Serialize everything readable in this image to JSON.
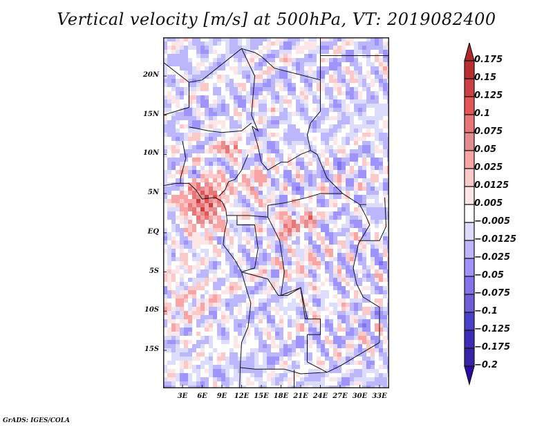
{
  "title": "Vertical velocity [m/s] at 500hPa, VT: 2019082400",
  "credit": "GrADS: IGES/COLA",
  "chart_data": {
    "type": "heatmap",
    "title": "Vertical velocity [m/s] at 500hPa, VT: 2019082400",
    "variable": "Vertical velocity",
    "units": "m/s",
    "level": "500hPa",
    "valid_time": "2019082400",
    "xlabel": "",
    "ylabel": "",
    "lon_range": [
      0,
      35
    ],
    "lat_range": [
      -20,
      25
    ],
    "x_ticks": [
      "3E",
      "6E",
      "9E",
      "12E",
      "15E",
      "18E",
      "21E",
      "24E",
      "27E",
      "30E",
      "33E"
    ],
    "x_tick_values": [
      3,
      6,
      9,
      12,
      15,
      18,
      21,
      24,
      27,
      30,
      33
    ],
    "y_ticks": [
      "20N",
      "15N",
      "10N",
      "5N",
      "EQ",
      "5S",
      "10S",
      "15S"
    ],
    "y_tick_values": [
      20,
      15,
      10,
      5,
      0,
      -5,
      -10,
      -15
    ],
    "colorbar": {
      "placement": "right",
      "levels": [
        0.175,
        0.15,
        0.125,
        0.1,
        0.075,
        0.05,
        0.025,
        0.0125,
        0.005,
        -0.005,
        -0.0125,
        -0.025,
        -0.05,
        -0.075,
        -0.1,
        -0.125,
        -0.175,
        -0.2
      ],
      "labels": [
        "0.175",
        "0.15",
        "0.125",
        "0.1",
        "0.075",
        "0.05",
        "0.025",
        "0.0125",
        "0.005",
        "-0.005",
        "-0.0125",
        "-0.025",
        "-0.05",
        "-0.075",
        "-0.1",
        "-0.125",
        "-0.175",
        "-0.2"
      ],
      "colors": [
        "#b0282a",
        "#ba2f30",
        "#cc4044",
        "#e55556",
        "#e87577",
        "#e28e90",
        "#f9a4a5",
        "#fcc9ca",
        "#fde6e7",
        "#ffffff",
        "#dcdcfc",
        "#bcb6fc",
        "#9f93fc",
        "#8174ec",
        "#6d5fd6",
        "#4b40cc",
        "#3d2cb8",
        "#3424a6",
        "#2c0aa8"
      ],
      "extend": "both"
    },
    "features": [
      "strong ascent (positive, red) over Gulf of Guinea / southern Nigeria near 4N 6E",
      "strong ascent cells near 2N 18E-22E (Congo basin)",
      "ascent cells over Chad/Nigeria near 11N 8E-11E",
      "weak descent (blue) dominant over Sahara and southern Africa",
      "weak ascent (light red) over southeast Atlantic near 8S 3E"
    ],
    "grid": false
  }
}
